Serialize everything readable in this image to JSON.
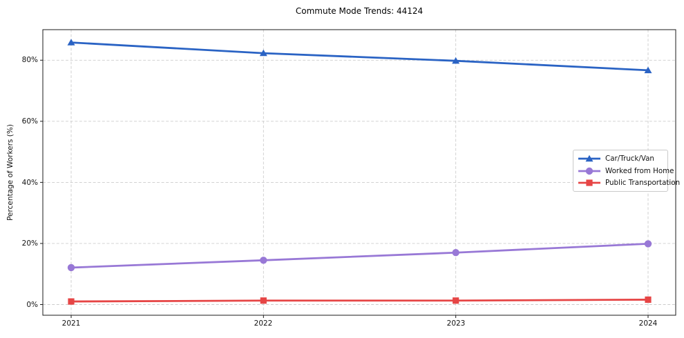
{
  "title": "Commute Mode Trends: 44124",
  "chart_data": {
    "type": "line",
    "title": "Commute Mode Trends: 44124",
    "xlabel": "",
    "ylabel": "Percentage of Workers (%)",
    "categories": [
      "2021",
      "2022",
      "2023",
      "2024"
    ],
    "yticks": [
      0,
      20,
      40,
      60,
      80
    ],
    "ytick_labels": [
      "0%",
      "20%",
      "40%",
      "60%",
      "80%"
    ],
    "ylim": [
      -3.5,
      90
    ],
    "grid": true,
    "grid_style": "dashed",
    "grid_color": "#cccccc",
    "legend_position": "center-right",
    "series": [
      {
        "name": "Car/Truck/Van",
        "color": "#2a63c4",
        "marker": "triangle",
        "values": [
          85.8,
          82.3,
          79.8,
          76.7
        ]
      },
      {
        "name": "Worked from Home",
        "color": "#9878d6",
        "marker": "circle",
        "values": [
          12.1,
          14.5,
          17.0,
          19.9
        ]
      },
      {
        "name": "Public Transportation",
        "color": "#e64545",
        "marker": "square",
        "values": [
          1.0,
          1.3,
          1.3,
          1.6
        ]
      }
    ]
  }
}
